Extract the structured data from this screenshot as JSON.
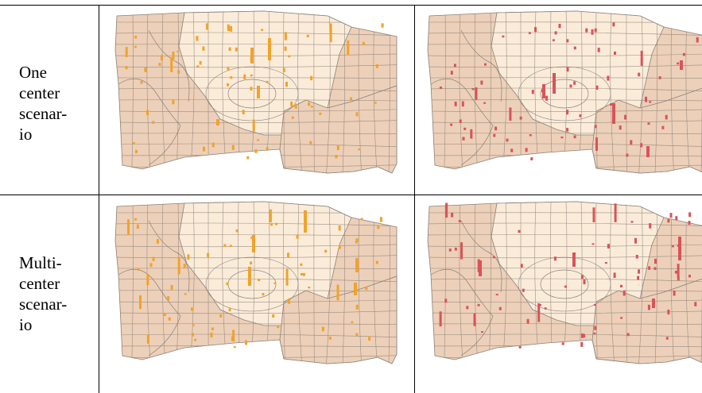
{
  "rows": [
    {
      "label_lines": [
        "One",
        "center",
        "scenar-",
        "io"
      ]
    },
    {
      "label_lines": [
        "Multi-",
        "center",
        "scenar-",
        "io"
      ]
    }
  ],
  "colors": {
    "outer_zone": "#edd0b9",
    "inner_zone": "#fbecda",
    "boundary": "#8a8078",
    "left_bars": "#f0a32a",
    "right_bars": "#d9535a"
  },
  "legend_note": ""
}
